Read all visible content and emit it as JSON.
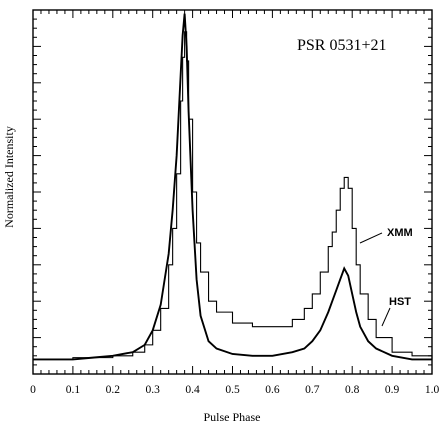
{
  "chart_data": {
    "type": "line",
    "title": "PSR  0531+21",
    "xlabel": "Pulse Phase",
    "ylabel": "Normalized Intensity",
    "xlim": [
      0,
      1.0
    ],
    "ylim": [
      0,
      1.0
    ],
    "xticks": [
      "0",
      "0.1",
      "0.2",
      "0.3",
      "0.4",
      "0.5",
      "0.6",
      "0.7",
      "0.8",
      "0.9",
      "1.0"
    ],
    "xtick_values": [
      0,
      0.1,
      0.2,
      0.3,
      0.4,
      0.5,
      0.6,
      0.7,
      0.8,
      0.9,
      1.0
    ],
    "grid": false,
    "annotations": [
      {
        "text": "XMM"
      },
      {
        "text": "HST"
      }
    ],
    "series": [
      {
        "name": "XMM",
        "style": "histogram",
        "x": [
          0,
          0.05,
          0.1,
          0.15,
          0.2,
          0.25,
          0.28,
          0.3,
          0.32,
          0.34,
          0.35,
          0.36,
          0.37,
          0.375,
          0.38,
          0.385,
          0.39,
          0.4,
          0.41,
          0.42,
          0.44,
          0.46,
          0.5,
          0.55,
          0.6,
          0.65,
          0.68,
          0.7,
          0.72,
          0.74,
          0.75,
          0.76,
          0.77,
          0.78,
          0.79,
          0.8,
          0.81,
          0.82,
          0.84,
          0.86,
          0.9,
          0.95,
          1.0
        ],
        "y": [
          0.04,
          0.04,
          0.045,
          0.045,
          0.05,
          0.06,
          0.08,
          0.12,
          0.18,
          0.3,
          0.4,
          0.55,
          0.75,
          0.87,
          0.94,
          0.86,
          0.7,
          0.5,
          0.36,
          0.28,
          0.2,
          0.17,
          0.14,
          0.13,
          0.13,
          0.15,
          0.18,
          0.22,
          0.28,
          0.35,
          0.39,
          0.45,
          0.51,
          0.54,
          0.51,
          0.4,
          0.3,
          0.22,
          0.15,
          0.1,
          0.06,
          0.05,
          0.04
        ]
      },
      {
        "name": "HST",
        "style": "line",
        "x": [
          0,
          0.05,
          0.1,
          0.15,
          0.2,
          0.25,
          0.28,
          0.3,
          0.32,
          0.34,
          0.35,
          0.36,
          0.37,
          0.375,
          0.38,
          0.385,
          0.39,
          0.4,
          0.41,
          0.42,
          0.44,
          0.46,
          0.5,
          0.55,
          0.6,
          0.65,
          0.68,
          0.7,
          0.72,
          0.74,
          0.75,
          0.76,
          0.77,
          0.78,
          0.79,
          0.8,
          0.81,
          0.82,
          0.84,
          0.86,
          0.9,
          0.95,
          1.0
        ],
        "y": [
          0.04,
          0.04,
          0.04,
          0.045,
          0.05,
          0.06,
          0.08,
          0.12,
          0.19,
          0.33,
          0.45,
          0.6,
          0.82,
          0.93,
          0.99,
          0.9,
          0.72,
          0.45,
          0.26,
          0.16,
          0.09,
          0.07,
          0.055,
          0.05,
          0.05,
          0.06,
          0.07,
          0.09,
          0.12,
          0.17,
          0.2,
          0.23,
          0.26,
          0.29,
          0.27,
          0.22,
          0.17,
          0.13,
          0.09,
          0.07,
          0.05,
          0.04,
          0.04
        ]
      }
    ]
  }
}
